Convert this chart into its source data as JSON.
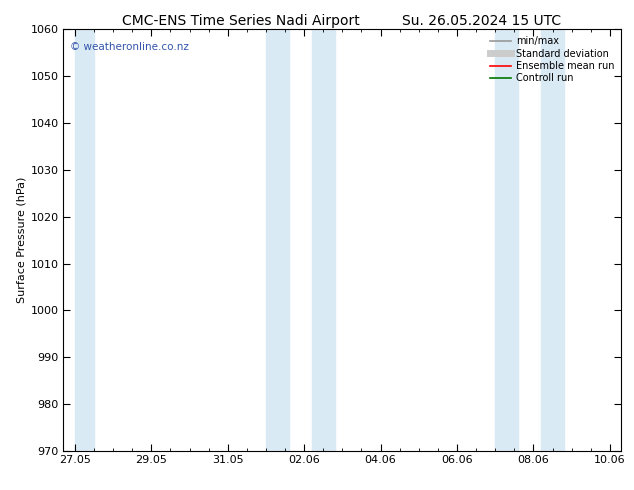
{
  "title_left": "CMC-ENS Time Series Nadi Airport",
  "title_right": "Su. 26.05.2024 15 UTC",
  "ylabel": "Surface Pressure (hPa)",
  "ylim": [
    970,
    1060
  ],
  "yticks": [
    970,
    980,
    990,
    1000,
    1010,
    1020,
    1030,
    1040,
    1050,
    1060
  ],
  "xtick_labels": [
    "27.05",
    "29.05",
    "31.05",
    "02.06",
    "04.06",
    "06.06",
    "08.06",
    "10.06"
  ],
  "shade_color": "#daeaf5",
  "watermark": "© weatheronline.co.nz",
  "watermark_color": "#3355aa",
  "background_color": "#ffffff",
  "legend_items": [
    {
      "label": "min/max",
      "color": "#999999",
      "lw": 1.2,
      "ls": "-"
    },
    {
      "label": "Standard deviation",
      "color": "#cccccc",
      "lw": 5,
      "ls": "-"
    },
    {
      "label": "Ensemble mean run",
      "color": "#ff0000",
      "lw": 1.2,
      "ls": "-"
    },
    {
      "label": "Controll run",
      "color": "#007700",
      "lw": 1.2,
      "ls": "-"
    }
  ],
  "title_fontsize": 10,
  "ylabel_fontsize": 8,
  "tick_fontsize": 8,
  "legend_fontsize": 7
}
